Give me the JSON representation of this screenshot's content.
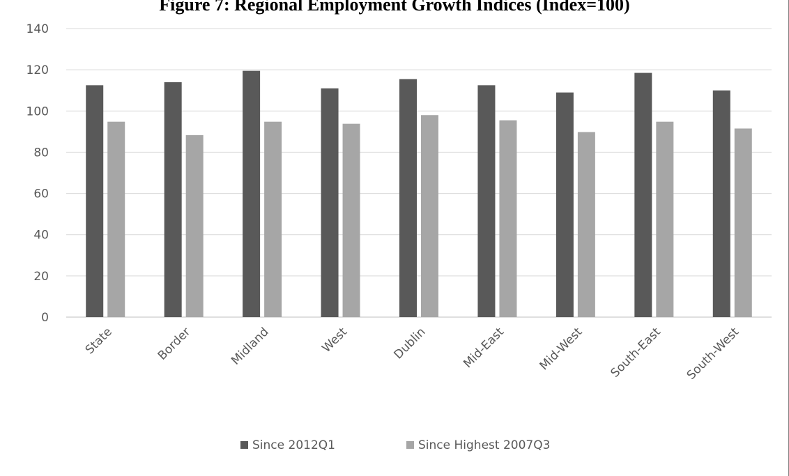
{
  "title": "Figure 7: Regional Employment Growth Indices (Index=100)",
  "chart_data": {
    "type": "bar",
    "categories": [
      "State",
      "Border",
      "Midland",
      "West",
      "Dublin",
      "Mid-East",
      "Mid-West",
      "South-East",
      "South-West"
    ],
    "series": [
      {
        "name": "Since 2012Q1",
        "color": "#595959",
        "values": [
          112.5,
          114,
          119.5,
          111,
          115.5,
          112.5,
          109,
          118.5,
          110
        ]
      },
      {
        "name": "Since Highest 2007Q3",
        "color": "#a6a6a6",
        "values": [
          94.8,
          88.3,
          94.8,
          93.8,
          98,
          95.5,
          89.8,
          94.8,
          91.5
        ]
      }
    ],
    "ylim": [
      0,
      140
    ],
    "yticks": [
      0,
      20,
      40,
      60,
      80,
      100,
      120,
      140
    ],
    "grid": true,
    "legend_position": "bottom"
  }
}
